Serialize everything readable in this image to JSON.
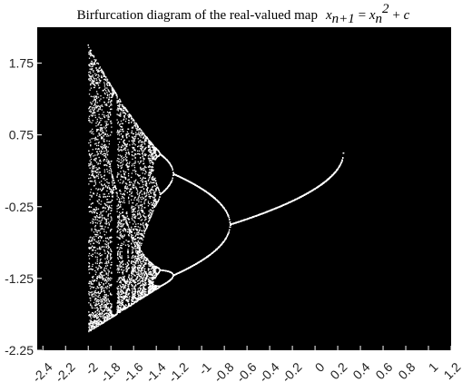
{
  "chart_data": {
    "type": "scatter",
    "title": "Birfurcation diagram of the real-valued map",
    "title_formula": {
      "lhs_var": "x",
      "lhs_sub": "n+1",
      "eq": "=",
      "rhs_var": "x",
      "rhs_sub": "n",
      "rhs_sup": "2",
      "plus": "+",
      "const": "c"
    },
    "xlabel": "",
    "ylabel": "",
    "xlim": [
      -2.45,
      1.2
    ],
    "ylim": [
      -2.25,
      2.25
    ],
    "x_ticks": [
      -2.4,
      -2.2,
      -2,
      -1.8,
      -1.6,
      -1.4,
      -1.2,
      -1,
      -0.8,
      -0.6,
      -0.4,
      -0.2,
      0,
      0.2,
      0.4,
      0.6,
      0.8,
      1,
      1.2
    ],
    "x_tick_labels": [
      "-2.4",
      "-2.2",
      "-2",
      "-1.8",
      "-1.6",
      "-1.4",
      "-1.2",
      "-1",
      "-0.8",
      "-0.6",
      "-0.4",
      "-0.2",
      "0",
      "0.2",
      "0.4",
      "0.6",
      "0.8",
      "1",
      "1.2"
    ],
    "y_ticks": [
      -2.25,
      -1.25,
      -0.25,
      0.75,
      1.75
    ],
    "y_tick_labels": [
      "-2.25",
      "-1.25",
      "-0.25",
      "0.75",
      "1.75"
    ],
    "grid": false,
    "colors": {
      "plot_background": "#000000",
      "points": "#ffffff",
      "page_background": "#ffffff"
    },
    "series": [
      {
        "generator": "iterate x -> x*x + c from x0 = 0 and plot the settled orbit values for each c",
        "c_range": [
          -2,
          0.25
        ],
        "c_step": 0.005,
        "transient_iterations": 400,
        "plotted_iterations": 40
      }
    ]
  }
}
